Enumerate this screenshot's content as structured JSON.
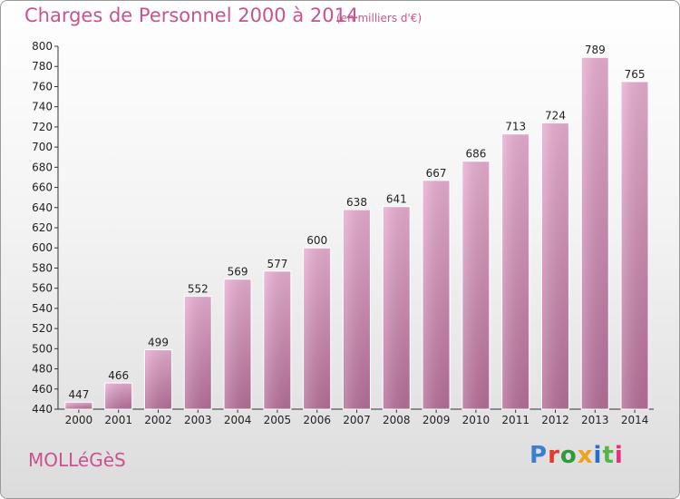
{
  "title": "Charges de Personnel 2000 à 2014",
  "unit_note": "(en milliers d'€)",
  "commune": "MOLLéGèS",
  "logo": {
    "letters": [
      "P",
      "r",
      "o",
      "x",
      "i",
      "t",
      "i"
    ]
  },
  "colors": {
    "title": "#c8538e",
    "bar_light": "#e5a7cb",
    "bar_dark": "#b8709a"
  },
  "chart_data": {
    "type": "bar",
    "title": "Charges de Personnel 2000 à 2014",
    "categories": [
      "2000",
      "2001",
      "2002",
      "2003",
      "2004",
      "2005",
      "2006",
      "2007",
      "2008",
      "2009",
      "2010",
      "2011",
      "2012",
      "2013",
      "2014"
    ],
    "values": [
      447,
      466,
      499,
      552,
      569,
      577,
      600,
      638,
      641,
      667,
      686,
      713,
      724,
      789,
      765
    ],
    "ylim": [
      440,
      800
    ],
    "yticks": [
      440,
      460,
      480,
      500,
      520,
      540,
      560,
      580,
      600,
      620,
      640,
      660,
      680,
      700,
      720,
      740,
      760,
      780,
      800
    ],
    "grid": false,
    "data_labels": true
  }
}
